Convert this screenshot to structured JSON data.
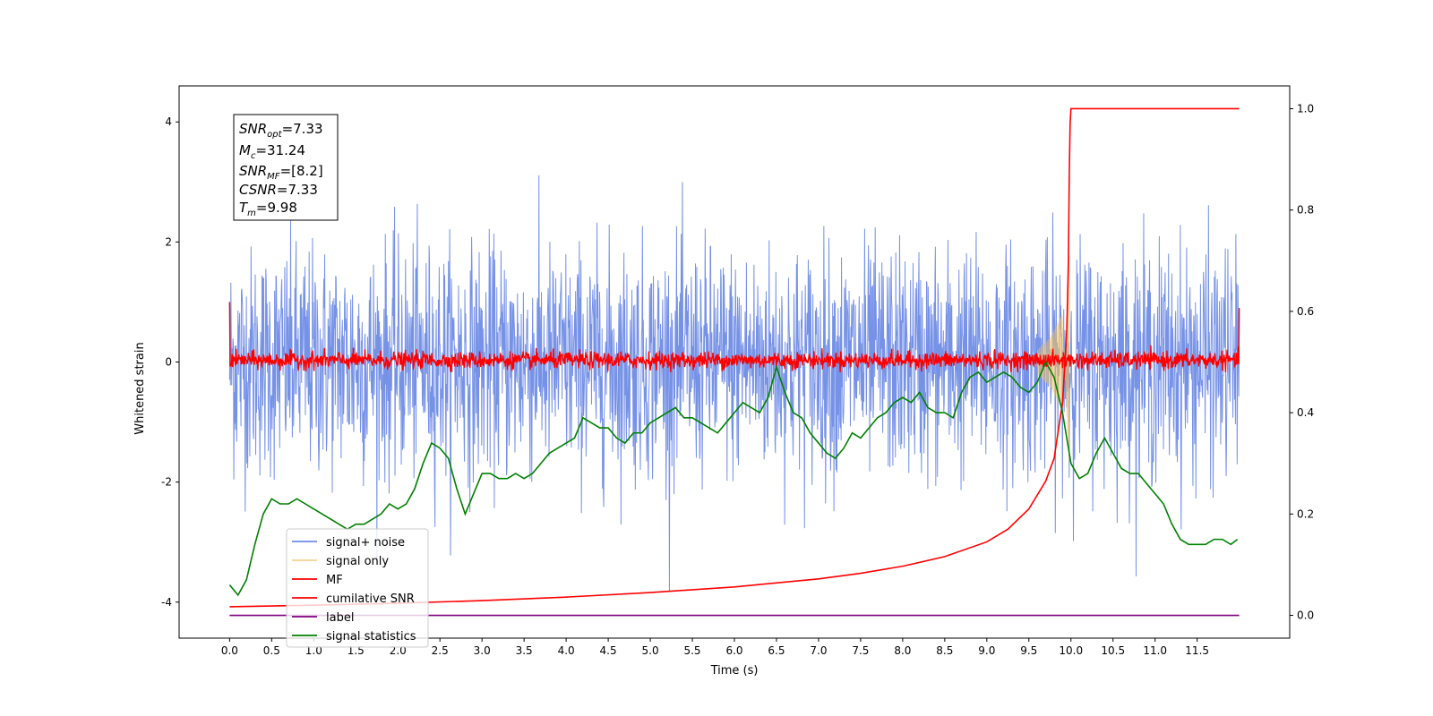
{
  "chart_data": {
    "type": "line",
    "xlabel": "Time (s)",
    "ylabel_left": "Whitened strain",
    "ylabel_right": "",
    "xlim": [
      -0.6,
      12.6
    ],
    "ylim_left": [
      -4.6,
      4.6
    ],
    "ylim_right": [
      -0.045,
      1.045
    ],
    "x_ticks": [
      "0.0",
      "0.5",
      "1.0",
      "1.5",
      "2.0",
      "2.5",
      "3.0",
      "3.5",
      "4.0",
      "4.5",
      "5.0",
      "5.5",
      "6.0",
      "6.5",
      "7.0",
      "7.5",
      "8.0",
      "8.5",
      "9.0",
      "9.5",
      "10.0",
      "10.5",
      "11.0",
      "11.5"
    ],
    "y_ticks_left": [
      "4",
      "2",
      "0",
      "-2",
      "-4"
    ],
    "y_ticks_right": [
      "1.0",
      "0.8",
      "0.6",
      "0.4",
      "0.2",
      "0.0"
    ],
    "grid": false,
    "legend_position": "lower-left",
    "annotation": {
      "snr_opt": "=7.33",
      "mc": "=31.24",
      "snr_mf": "=[8.2]",
      "csnr": "=7.33",
      "tm": "=9.98"
    },
    "series": [
      {
        "name": "signal+ noise",
        "axis": "left",
        "color": "#6f8ce6",
        "t_range": [
          0,
          12
        ],
        "typical_range": [
          -1.3,
          1.3
        ],
        "peak_range": [
          -4.1,
          4.1
        ]
      },
      {
        "name": "signal only",
        "axis": "left",
        "color": "#f2c063",
        "t_range": [
          9.6,
          10.0
        ],
        "envelope": [
          [
            9.6,
            0.2
          ],
          [
            9.75,
            0.4
          ],
          [
            9.9,
            0.8
          ],
          [
            9.98,
            -1.8
          ]
        ]
      },
      {
        "name": "MF",
        "axis": "left",
        "color": "#ff0000",
        "t_range": [
          0,
          12
        ],
        "typical_range": [
          -0.15,
          0.2
        ],
        "start_value": 1.0,
        "end_value": 0.9
      },
      {
        "name": "cumilative SNR",
        "axis": "right",
        "color": "#ff0000",
        "x": [
          0,
          1,
          2,
          3,
          4,
          5,
          6,
          7,
          7.5,
          8,
          8.5,
          9,
          9.25,
          9.5,
          9.7,
          9.8,
          9.9,
          9.95,
          9.97,
          9.98,
          9.99,
          10.0,
          11.0,
          12.0
        ],
        "values": [
          0.017,
          0.02,
          0.024,
          0.029,
          0.036,
          0.045,
          0.056,
          0.072,
          0.083,
          0.097,
          0.116,
          0.145,
          0.17,
          0.21,
          0.265,
          0.31,
          0.42,
          0.56,
          0.7,
          0.87,
          0.97,
          1.0,
          1.0,
          1.0
        ]
      },
      {
        "name": "label",
        "axis": "right",
        "color": "#800080",
        "x": [
          0,
          12
        ],
        "values": [
          0,
          0
        ]
      },
      {
        "name": "signal statistics",
        "axis": "right",
        "color": "#008000",
        "x": [
          0.0,
          0.1,
          0.2,
          0.3,
          0.4,
          0.5,
          0.6,
          0.7,
          0.8,
          0.9,
          1.0,
          1.1,
          1.2,
          1.3,
          1.4,
          1.5,
          1.6,
          1.7,
          1.8,
          1.9,
          2.0,
          2.1,
          2.2,
          2.3,
          2.4,
          2.5,
          2.6,
          2.7,
          2.8,
          2.9,
          3.0,
          3.1,
          3.2,
          3.3,
          3.4,
          3.5,
          3.6,
          3.7,
          3.8,
          3.9,
          4.0,
          4.1,
          4.2,
          4.3,
          4.4,
          4.5,
          4.6,
          4.7,
          4.8,
          4.9,
          5.0,
          5.1,
          5.2,
          5.3,
          5.4,
          5.5,
          5.6,
          5.7,
          5.8,
          5.9,
          6.0,
          6.1,
          6.2,
          6.3,
          6.4,
          6.5,
          6.6,
          6.7,
          6.8,
          6.9,
          7.0,
          7.1,
          7.2,
          7.3,
          7.4,
          7.5,
          7.6,
          7.7,
          7.8,
          7.9,
          8.0,
          8.1,
          8.2,
          8.3,
          8.4,
          8.5,
          8.6,
          8.7,
          8.8,
          8.9,
          9.0,
          9.1,
          9.2,
          9.3,
          9.4,
          9.5,
          9.6,
          9.7,
          9.8,
          9.9,
          10.0,
          10.1,
          10.2,
          10.3,
          10.4,
          10.5,
          10.6,
          10.7,
          10.8,
          10.9,
          11.0,
          11.1,
          11.2,
          11.3,
          11.4,
          11.5,
          11.6,
          11.7,
          11.8,
          11.9,
          11.98
        ],
        "values": [
          0.06,
          0.04,
          0.07,
          0.14,
          0.2,
          0.23,
          0.22,
          0.22,
          0.23,
          0.22,
          0.21,
          0.2,
          0.19,
          0.18,
          0.17,
          0.18,
          0.18,
          0.19,
          0.2,
          0.22,
          0.21,
          0.22,
          0.25,
          0.3,
          0.34,
          0.33,
          0.31,
          0.25,
          0.2,
          0.24,
          0.28,
          0.28,
          0.27,
          0.27,
          0.28,
          0.27,
          0.28,
          0.3,
          0.32,
          0.33,
          0.34,
          0.35,
          0.39,
          0.38,
          0.37,
          0.37,
          0.35,
          0.34,
          0.36,
          0.36,
          0.38,
          0.39,
          0.4,
          0.41,
          0.39,
          0.39,
          0.38,
          0.37,
          0.36,
          0.38,
          0.4,
          0.42,
          0.41,
          0.4,
          0.43,
          0.49,
          0.44,
          0.4,
          0.39,
          0.36,
          0.34,
          0.32,
          0.31,
          0.33,
          0.36,
          0.35,
          0.37,
          0.39,
          0.4,
          0.42,
          0.43,
          0.42,
          0.44,
          0.41,
          0.4,
          0.4,
          0.39,
          0.44,
          0.47,
          0.48,
          0.46,
          0.47,
          0.48,
          0.47,
          0.45,
          0.44,
          0.46,
          0.5,
          0.47,
          0.4,
          0.3,
          0.27,
          0.28,
          0.32,
          0.35,
          0.32,
          0.29,
          0.28,
          0.28,
          0.26,
          0.24,
          0.22,
          0.18,
          0.15,
          0.14,
          0.14,
          0.14,
          0.15,
          0.15,
          0.14,
          0.15
        ]
      }
    ]
  }
}
